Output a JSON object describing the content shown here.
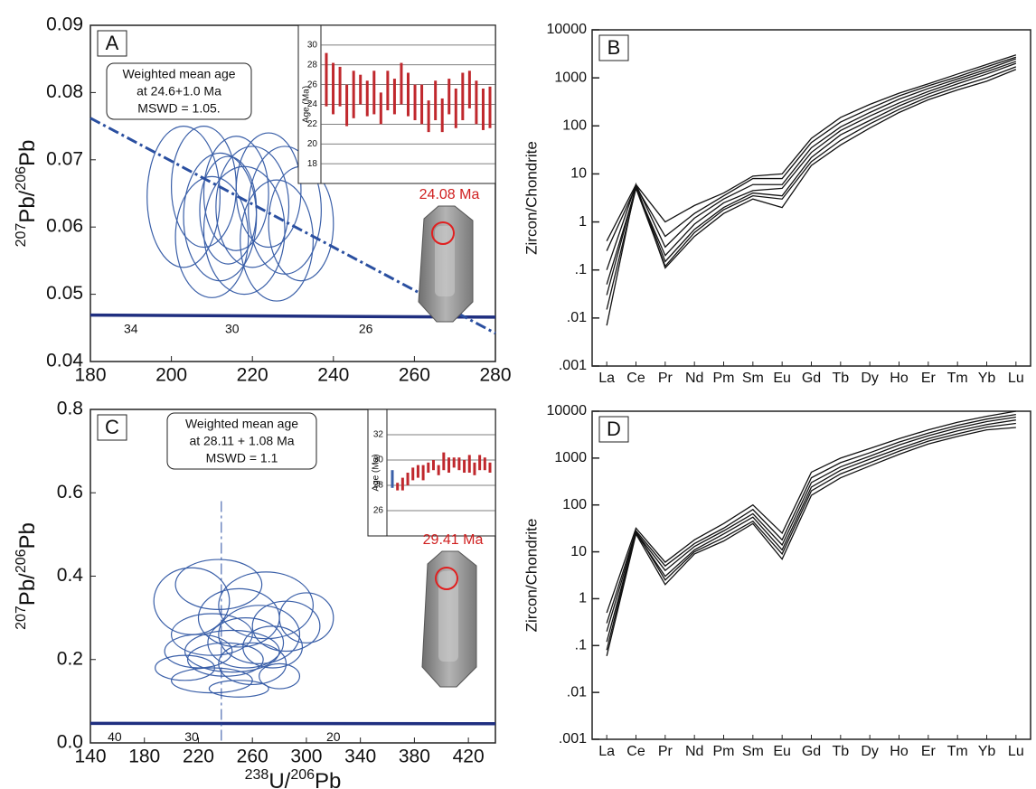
{
  "chart_data": [
    {
      "type": "concordia",
      "panel_label": "A",
      "ylabel": [
        "207",
        "Pb/",
        "206",
        "Pb"
      ],
      "xlim": [
        180,
        280
      ],
      "xticks": [
        180,
        200,
        220,
        240,
        260,
        280
      ],
      "ylim": [
        0.04,
        0.09
      ],
      "yticks": [
        0.04,
        0.05,
        0.06,
        0.07,
        0.08,
        0.09
      ],
      "concordia": {
        "x": [
          180,
          280
        ],
        "y": [
          0.0469,
          0.0466
        ]
      },
      "concordia_ages": {
        "ages": [
          34,
          30,
          26
        ],
        "x": [
          190,
          215,
          248
        ]
      },
      "discordia": {
        "x": [
          180,
          280
        ],
        "y": [
          0.0762,
          0.0442
        ]
      },
      "ellipses": {
        "color": "#3a5fa8",
        "x": [
          203,
          208,
          212,
          216,
          220,
          224,
          228,
          232,
          210,
          218,
          226,
          214
        ],
        "y": [
          0.0645,
          0.066,
          0.0615,
          0.065,
          0.063,
          0.0655,
          0.0625,
          0.0605,
          0.0585,
          0.0595,
          0.058,
          0.0625
        ],
        "rx": [
          9,
          8,
          9,
          8,
          9,
          8,
          9,
          8,
          9,
          10,
          9,
          7
        ],
        "ry": [
          0.0105,
          0.009,
          0.0095,
          0.0085,
          0.009,
          0.0085,
          0.0095,
          0.0085,
          0.009,
          0.0095,
          0.009,
          0.008
        ]
      },
      "annotation": [
        "Weighted mean age",
        "at  24.6+1.0 Ma",
        "MSWD = 1.05."
      ],
      "spot_age": "24.08 Ma",
      "inset": {
        "ylabel": "Age (Ma)",
        "ylim": [
          16,
          32
        ],
        "yticks": [
          18,
          20,
          22,
          24,
          26,
          28,
          30
        ],
        "color": "#c0282d",
        "low": [
          23.8,
          23.0,
          23.8,
          21.8,
          22.6,
          24.0,
          22.8,
          23.0,
          22.0,
          23.4,
          23.0,
          24.0,
          22.8,
          22.4,
          22.0,
          21.2,
          22.4,
          21.2,
          23.0,
          21.6,
          22.4,
          23.6,
          22.0,
          21.4,
          21.6
        ],
        "high": [
          29.2,
          28.2,
          27.8,
          26.0,
          27.4,
          27.0,
          26.4,
          27.4,
          25.2,
          27.4,
          26.6,
          28.2,
          27.2,
          26.0,
          26.0,
          24.4,
          26.4,
          24.6,
          26.6,
          25.6,
          27.2,
          27.4,
          26.4,
          25.6,
          25.8
        ]
      }
    },
    {
      "type": "line",
      "panel_label": "B",
      "ylabel": "Zircon/Chondrite",
      "log_scale": true,
      "color": "#111111",
      "categories": [
        "La",
        "Ce",
        "Pr",
        "Nd",
        "Pm",
        "Sm",
        "Eu",
        "Gd",
        "Tb",
        "Dy",
        "Ho",
        "Er",
        "Tm",
        "Yb",
        "Lu"
      ],
      "ylim": [
        0.001,
        10000
      ],
      "yticks": [
        10000,
        1000,
        100,
        10,
        1,
        {
          "value": 0.1,
          "label": ".1"
        },
        {
          "value": 0.01,
          "label": ".01"
        },
        {
          "value": 0.001,
          "label": ".001"
        }
      ],
      "series": [
        {
          "values": [
            0.4,
            6,
            1,
            2.2,
            4,
            9,
            10,
            55,
            150,
            280,
            480,
            750,
            1200,
            1900,
            3000
          ]
        },
        {
          "values": [
            0.25,
            5.5,
            0.5,
            1.5,
            3.5,
            8,
            8,
            45,
            120,
            230,
            420,
            680,
            1050,
            1700,
            2700
          ]
        },
        {
          "values": [
            0.1,
            6,
            0.3,
            1.2,
            3,
            6,
            6,
            35,
            95,
            190,
            360,
            600,
            950,
            1500,
            2500
          ]
        },
        {
          "values": [
            0.05,
            5,
            0.2,
            0.9,
            2.5,
            4.5,
            5,
            28,
            80,
            160,
            300,
            520,
            850,
            1350,
            2200
          ]
        },
        {
          "values": [
            0.03,
            5.5,
            0.15,
            0.7,
            2,
            4,
            3.5,
            22,
            65,
            130,
            260,
            460,
            750,
            1200,
            2000
          ]
        },
        {
          "values": [
            0.015,
            5,
            0.12,
            0.6,
            1.8,
            3.5,
            3,
            18,
            50,
            110,
            220,
            400,
            650,
            1000,
            1700
          ]
        },
        {
          "values": [
            0.007,
            6,
            0.11,
            0.5,
            1.5,
            3,
            2,
            15,
            40,
            90,
            190,
            350,
            560,
            850,
            1500
          ]
        }
      ]
    },
    {
      "type": "concordia",
      "panel_label": "C",
      "ylabel": [
        "207",
        "Pb/",
        "206",
        "Pb"
      ],
      "xlabel": [
        "238",
        "U/",
        "206",
        "Pb"
      ],
      "xlim": [
        140,
        440
      ],
      "xticks": [
        140,
        180,
        220,
        260,
        300,
        340,
        380,
        420
      ],
      "ylim": [
        0,
        0.8
      ],
      "yticks": [
        {
          "value": 0,
          "label": "0.0"
        },
        0.2,
        0.4,
        0.6,
        0.8
      ],
      "concordia": {
        "x": [
          140,
          440
        ],
        "y": [
          0.047,
          0.046
        ]
      },
      "concordia_ages": {
        "ages": [
          40,
          30,
          20
        ],
        "x": [
          158,
          215,
          320
        ]
      },
      "discordia": {
        "x": [
          237,
          237
        ],
        "y": [
          0.58,
          0
        ]
      },
      "ellipses": {
        "color": "#3a5fa8",
        "x": [
          215,
          235,
          250,
          270,
          285,
          230,
          255,
          245,
          220,
          265,
          240,
          300,
          210,
          260,
          275,
          230,
          250,
          280
        ],
        "y": [
          0.34,
          0.38,
          0.3,
          0.33,
          0.28,
          0.26,
          0.24,
          0.22,
          0.22,
          0.26,
          0.2,
          0.3,
          0.18,
          0.19,
          0.23,
          0.15,
          0.13,
          0.16
        ],
        "rx": [
          28,
          32,
          30,
          35,
          25,
          30,
          28,
          35,
          25,
          30,
          28,
          20,
          22,
          25,
          22,
          30,
          22,
          15
        ],
        "ry": [
          0.08,
          0.06,
          0.07,
          0.08,
          0.06,
          0.05,
          0.06,
          0.05,
          0.04,
          0.07,
          0.04,
          0.06,
          0.03,
          0.05,
          0.05,
          0.03,
          0.02,
          0.03
        ]
      },
      "annotation": [
        "Weighted mean age",
        "at 28.11 + 1.08 Ma",
        "MSWD = 1.1"
      ],
      "spot_age": "29.41 Ma",
      "inset": {
        "ylabel": "Age (Ma)",
        "ylim": [
          24,
          34
        ],
        "yticks": [
          26,
          28,
          30,
          32
        ],
        "color": "#c0282d",
        "first_color": "#3a5fa8",
        "low": [
          27.8,
          27.6,
          27.6,
          28.0,
          28.4,
          28.6,
          28.4,
          29.0,
          29.2,
          28.8,
          29.2,
          29.0,
          29.4,
          29.2,
          29.0,
          29.0,
          28.8,
          29.2,
          29.2,
          29.0
        ],
        "high": [
          29.2,
          28.2,
          28.6,
          29.0,
          29.4,
          29.6,
          29.6,
          29.8,
          30.0,
          29.6,
          30.6,
          30.2,
          30.2,
          30.2,
          30.0,
          30.4,
          29.8,
          30.4,
          30.2,
          29.8
        ]
      }
    },
    {
      "type": "line",
      "panel_label": "D",
      "ylabel": "Zircon/Chondrite",
      "log_scale": true,
      "color": "#111111",
      "categories": [
        "La",
        "Ce",
        "Pr",
        "Nd",
        "Pm",
        "Sm",
        "Eu",
        "Gd",
        "Tb",
        "Dy",
        "Ho",
        "Er",
        "Tm",
        "Yb",
        "Lu"
      ],
      "ylim": [
        0.001,
        10000
      ],
      "yticks": [
        10000,
        1000,
        100,
        10,
        1,
        {
          "value": 0.1,
          "label": ".1"
        },
        {
          "value": 0.01,
          "label": ".01"
        },
        {
          "value": 0.001,
          "label": ".001"
        }
      ],
      "series": [
        {
          "values": [
            0.5,
            32,
            6,
            18,
            40,
            100,
            25,
            500,
            1000,
            1600,
            2600,
            4000,
            5800,
            7800,
            10000
          ]
        },
        {
          "values": [
            0.3,
            28,
            5,
            15,
            32,
            80,
            18,
            380,
            800,
            1300,
            2200,
            3400,
            5000,
            6800,
            8500
          ]
        },
        {
          "values": [
            0.2,
            26,
            4,
            13,
            28,
            65,
            14,
            300,
            650,
            1100,
            1900,
            3000,
            4400,
            6000,
            7500
          ]
        },
        {
          "values": [
            0.12,
            25,
            3,
            11,
            24,
            55,
            11,
            240,
            550,
            950,
            1600,
            2600,
            3800,
            5200,
            6500
          ]
        },
        {
          "values": [
            0.08,
            27,
            2.5,
            10,
            20,
            45,
            9,
            200,
            460,
            800,
            1400,
            2300,
            3300,
            4600,
            5500
          ]
        },
        {
          "values": [
            0.06,
            24,
            2,
            9,
            17,
            40,
            7,
            160,
            380,
            680,
            1200,
            2000,
            2900,
            4000,
            4500
          ]
        }
      ]
    }
  ]
}
